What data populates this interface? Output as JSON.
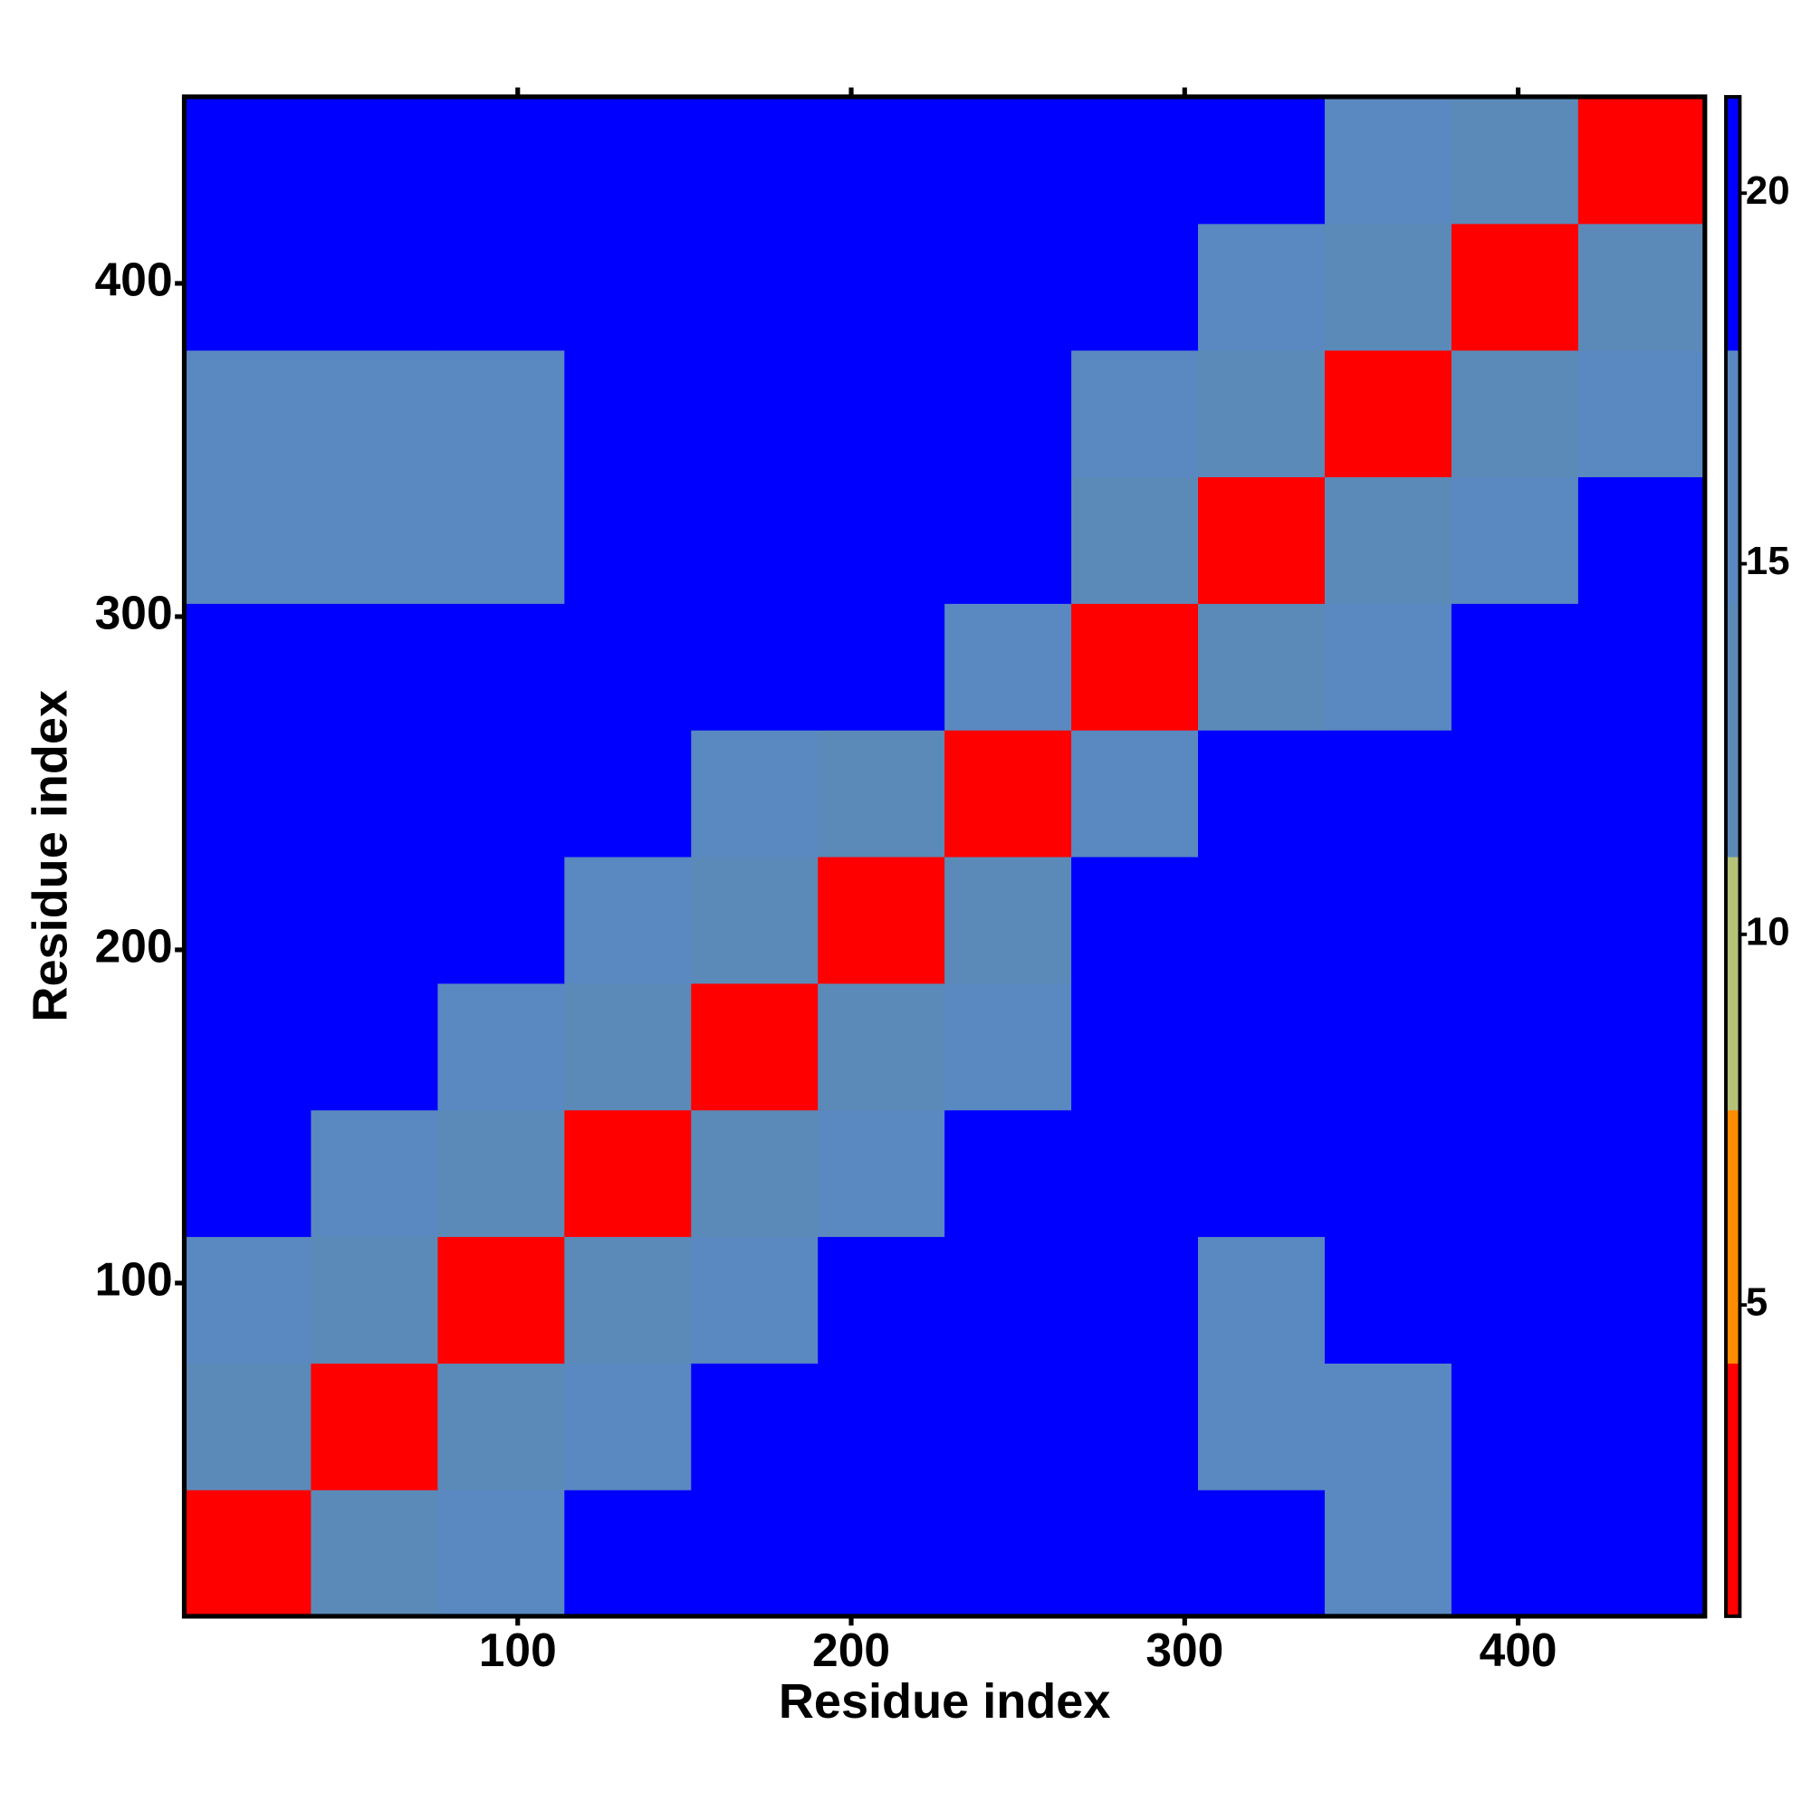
{
  "chart_data": {
    "type": "heatmap",
    "x_label": "Residue index",
    "y_label": "Residue index",
    "x_bins": [
      0,
      38,
      76,
      114,
      152,
      190,
      228,
      266,
      304,
      342,
      380,
      418,
      456
    ],
    "y_bins": [
      0,
      38,
      76,
      114,
      152,
      190,
      228,
      266,
      304,
      342,
      380,
      418,
      456
    ],
    "xlim": [
      0,
      456
    ],
    "ylim": [
      0,
      456
    ],
    "xticks": [
      100,
      200,
      300,
      400
    ],
    "yticks": [
      100,
      200,
      300,
      400
    ],
    "z": [
      [
        3,
        14,
        17,
        20,
        21,
        21,
        21,
        20,
        19,
        17,
        21,
        21
      ],
      [
        14,
        3,
        13,
        17,
        20,
        20,
        21,
        19,
        15,
        15,
        20,
        21
      ],
      [
        17,
        13,
        3,
        13,
        17,
        19,
        20,
        19,
        16,
        18,
        20,
        21
      ],
      [
        20,
        17,
        13,
        3,
        12,
        15,
        18,
        20,
        19,
        20,
        21,
        21
      ],
      [
        21,
        20,
        17,
        12,
        3,
        12,
        16,
        20,
        19,
        20,
        21,
        21
      ],
      [
        21,
        20,
        19,
        15,
        12,
        3,
        14,
        20,
        20,
        20,
        20,
        21
      ],
      [
        21,
        21,
        20,
        18,
        16,
        14,
        3,
        15,
        19,
        20,
        20,
        21
      ],
      [
        19,
        18,
        18,
        20,
        20,
        20,
        15,
        3,
        13,
        16,
        19,
        20
      ],
      [
        16,
        16,
        15,
        19,
        20,
        20,
        19,
        13,
        3,
        12,
        16,
        18
      ],
      [
        16,
        16,
        17,
        20,
        20,
        20,
        20,
        16,
        12,
        3,
        12,
        16
      ],
      [
        20,
        19,
        20,
        21,
        21,
        20,
        20,
        19,
        16,
        12,
        3,
        13
      ],
      [
        21,
        21,
        21,
        21,
        21,
        21,
        21,
        20,
        18,
        16,
        13,
        3
      ]
    ],
    "zlim": [
      0.8,
      21.3
    ],
    "zticks": [
      5,
      10,
      15,
      20
    ],
    "colorscale": [
      "#ff0000",
      "#ff8c00",
      "#b5c27a",
      "#5b8ab8",
      "#5a88c0",
      "#0000ff"
    ]
  }
}
